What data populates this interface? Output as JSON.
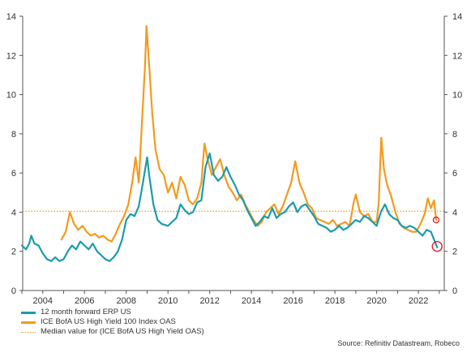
{
  "chart_data": {
    "type": "line",
    "xlim": [
      2003,
      2023.2
    ],
    "ylim": [
      0,
      14
    ],
    "x_ticks": [
      2004,
      2006,
      2008,
      2010,
      2012,
      2014,
      2016,
      2018,
      2020,
      2022
    ],
    "y_ticks": [
      0,
      2,
      4,
      6,
      8,
      10,
      12,
      14
    ],
    "y_axis_sides": [
      "left",
      "right"
    ],
    "grid": false,
    "legend_position": "bottom-left",
    "median_line": {
      "name": "Median value for (ICE BofA US High Yield OAS)",
      "value": 4.05,
      "color": "#f39a1e",
      "style": "dotted"
    },
    "series": [
      {
        "name": "12 month forward ERP US",
        "color": "#1a9bae",
        "points": [
          [
            2003.0,
            2.3
          ],
          [
            2003.2,
            2.1
          ],
          [
            2003.35,
            2.4
          ],
          [
            2003.45,
            2.8
          ],
          [
            2003.6,
            2.4
          ],
          [
            2003.8,
            2.3
          ],
          [
            2004.0,
            1.9
          ],
          [
            2004.2,
            1.6
          ],
          [
            2004.4,
            1.5
          ],
          [
            2004.6,
            1.7
          ],
          [
            2004.8,
            1.5
          ],
          [
            2005.0,
            1.6
          ],
          [
            2005.2,
            2.0
          ],
          [
            2005.4,
            2.3
          ],
          [
            2005.6,
            2.1
          ],
          [
            2005.8,
            2.5
          ],
          [
            2006.0,
            2.3
          ],
          [
            2006.2,
            2.1
          ],
          [
            2006.4,
            2.4
          ],
          [
            2006.6,
            2.0
          ],
          [
            2006.8,
            1.8
          ],
          [
            2007.0,
            1.6
          ],
          [
            2007.2,
            1.5
          ],
          [
            2007.4,
            1.7
          ],
          [
            2007.6,
            2.0
          ],
          [
            2007.8,
            2.6
          ],
          [
            2008.0,
            3.6
          ],
          [
            2008.2,
            3.9
          ],
          [
            2008.4,
            3.8
          ],
          [
            2008.6,
            4.3
          ],
          [
            2008.8,
            5.5
          ],
          [
            2009.0,
            6.8
          ],
          [
            2009.1,
            5.9
          ],
          [
            2009.3,
            4.4
          ],
          [
            2009.5,
            3.6
          ],
          [
            2009.7,
            3.4
          ],
          [
            2010.0,
            3.3
          ],
          [
            2010.2,
            3.5
          ],
          [
            2010.4,
            3.7
          ],
          [
            2010.6,
            4.4
          ],
          [
            2010.8,
            4.1
          ],
          [
            2011.0,
            3.9
          ],
          [
            2011.2,
            4.0
          ],
          [
            2011.4,
            4.5
          ],
          [
            2011.6,
            4.6
          ],
          [
            2011.8,
            6.3
          ],
          [
            2012.0,
            7.0
          ],
          [
            2012.2,
            5.9
          ],
          [
            2012.4,
            5.6
          ],
          [
            2012.6,
            5.8
          ],
          [
            2012.8,
            6.3
          ],
          [
            2013.0,
            5.8
          ],
          [
            2013.2,
            5.4
          ],
          [
            2013.4,
            4.9
          ],
          [
            2013.6,
            4.6
          ],
          [
            2013.8,
            4.1
          ],
          [
            2014.0,
            3.7
          ],
          [
            2014.2,
            3.3
          ],
          [
            2014.4,
            3.5
          ],
          [
            2014.6,
            3.8
          ],
          [
            2014.8,
            3.7
          ],
          [
            2015.0,
            4.2
          ],
          [
            2015.2,
            3.7
          ],
          [
            2015.4,
            3.9
          ],
          [
            2015.6,
            4.0
          ],
          [
            2015.8,
            4.3
          ],
          [
            2016.0,
            4.5
          ],
          [
            2016.2,
            4.0
          ],
          [
            2016.4,
            4.3
          ],
          [
            2016.6,
            4.4
          ],
          [
            2016.8,
            4.1
          ],
          [
            2017.0,
            3.8
          ],
          [
            2017.2,
            3.4
          ],
          [
            2017.4,
            3.3
          ],
          [
            2017.6,
            3.2
          ],
          [
            2017.8,
            3.0
          ],
          [
            2018.0,
            3.1
          ],
          [
            2018.2,
            3.3
          ],
          [
            2018.4,
            3.1
          ],
          [
            2018.6,
            3.2
          ],
          [
            2018.8,
            3.4
          ],
          [
            2019.0,
            3.6
          ],
          [
            2019.2,
            3.5
          ],
          [
            2019.4,
            3.8
          ],
          [
            2019.6,
            3.7
          ],
          [
            2019.8,
            3.5
          ],
          [
            2020.0,
            3.3
          ],
          [
            2020.2,
            4.0
          ],
          [
            2020.4,
            4.4
          ],
          [
            2020.6,
            3.9
          ],
          [
            2020.8,
            3.7
          ],
          [
            2021.0,
            3.6
          ],
          [
            2021.2,
            3.3
          ],
          [
            2021.4,
            3.2
          ],
          [
            2021.6,
            3.3
          ],
          [
            2021.8,
            3.2
          ],
          [
            2022.0,
            3.0
          ],
          [
            2022.2,
            2.8
          ],
          [
            2022.4,
            3.1
          ],
          [
            2022.6,
            3.0
          ],
          [
            2022.75,
            2.6
          ],
          [
            2022.9,
            2.2
          ]
        ]
      },
      {
        "name": "ICE BofA US High Yield 100 Index OAS",
        "color": "#f39a1e",
        "points": [
          [
            2004.9,
            2.6
          ],
          [
            2005.1,
            3.0
          ],
          [
            2005.3,
            4.0
          ],
          [
            2005.5,
            3.4
          ],
          [
            2005.7,
            3.1
          ],
          [
            2005.9,
            3.3
          ],
          [
            2006.1,
            3.0
          ],
          [
            2006.3,
            2.8
          ],
          [
            2006.5,
            2.9
          ],
          [
            2006.7,
            2.7
          ],
          [
            2006.9,
            2.8
          ],
          [
            2007.1,
            2.6
          ],
          [
            2007.3,
            2.5
          ],
          [
            2007.5,
            2.9
          ],
          [
            2007.7,
            3.4
          ],
          [
            2007.9,
            3.8
          ],
          [
            2008.1,
            4.4
          ],
          [
            2008.3,
            5.6
          ],
          [
            2008.45,
            6.8
          ],
          [
            2008.6,
            5.5
          ],
          [
            2008.75,
            8.5
          ],
          [
            2008.9,
            11.5
          ],
          [
            2008.97,
            13.5
          ],
          [
            2009.1,
            11.5
          ],
          [
            2009.25,
            9.0
          ],
          [
            2009.4,
            7.2
          ],
          [
            2009.6,
            6.2
          ],
          [
            2009.8,
            5.9
          ],
          [
            2010.0,
            5.0
          ],
          [
            2010.2,
            5.5
          ],
          [
            2010.4,
            4.7
          ],
          [
            2010.6,
            5.8
          ],
          [
            2010.8,
            5.4
          ],
          [
            2011.0,
            4.6
          ],
          [
            2011.2,
            4.4
          ],
          [
            2011.4,
            4.7
          ],
          [
            2011.6,
            5.5
          ],
          [
            2011.75,
            7.5
          ],
          [
            2011.9,
            6.7
          ],
          [
            2012.1,
            5.9
          ],
          [
            2012.3,
            6.3
          ],
          [
            2012.5,
            6.7
          ],
          [
            2012.7,
            5.9
          ],
          [
            2012.9,
            5.3
          ],
          [
            2013.1,
            5.0
          ],
          [
            2013.3,
            4.6
          ],
          [
            2013.5,
            4.9
          ],
          [
            2013.7,
            4.4
          ],
          [
            2013.9,
            4.0
          ],
          [
            2014.1,
            3.6
          ],
          [
            2014.3,
            3.3
          ],
          [
            2014.5,
            3.5
          ],
          [
            2014.7,
            4.0
          ],
          [
            2014.9,
            4.2
          ],
          [
            2015.1,
            4.4
          ],
          [
            2015.3,
            3.9
          ],
          [
            2015.5,
            4.3
          ],
          [
            2015.7,
            4.9
          ],
          [
            2015.9,
            5.5
          ],
          [
            2016.1,
            6.6
          ],
          [
            2016.3,
            5.5
          ],
          [
            2016.5,
            5.0
          ],
          [
            2016.7,
            4.4
          ],
          [
            2016.9,
            4.2
          ],
          [
            2017.1,
            3.7
          ],
          [
            2017.3,
            3.6
          ],
          [
            2017.5,
            3.5
          ],
          [
            2017.7,
            3.4
          ],
          [
            2017.9,
            3.6
          ],
          [
            2018.1,
            3.3
          ],
          [
            2018.3,
            3.4
          ],
          [
            2018.5,
            3.5
          ],
          [
            2018.7,
            3.3
          ],
          [
            2018.9,
            4.5
          ],
          [
            2019.0,
            4.9
          ],
          [
            2019.2,
            4.0
          ],
          [
            2019.4,
            3.8
          ],
          [
            2019.6,
            3.9
          ],
          [
            2019.8,
            3.5
          ],
          [
            2020.0,
            3.5
          ],
          [
            2020.1,
            4.5
          ],
          [
            2020.22,
            7.8
          ],
          [
            2020.35,
            6.2
          ],
          [
            2020.5,
            5.4
          ],
          [
            2020.7,
            4.8
          ],
          [
            2020.9,
            4.0
          ],
          [
            2021.1,
            3.4
          ],
          [
            2021.3,
            3.2
          ],
          [
            2021.5,
            3.1
          ],
          [
            2021.7,
            3.0
          ],
          [
            2021.9,
            3.0
          ],
          [
            2022.1,
            3.4
          ],
          [
            2022.3,
            3.9
          ],
          [
            2022.45,
            4.7
          ],
          [
            2022.6,
            4.2
          ],
          [
            2022.75,
            4.6
          ],
          [
            2022.85,
            3.6
          ]
        ]
      }
    ],
    "annotations": [
      {
        "type": "circle",
        "x": 2022.9,
        "y": 2.25,
        "radius_px": 6,
        "color": "#e0202e"
      },
      {
        "type": "circle",
        "x": 2022.85,
        "y": 3.6,
        "radius_px": 3.5,
        "color": "#e0202e"
      }
    ]
  },
  "legend": {
    "items": [
      {
        "label": "12 month forward ERP US",
        "style": "solid-teal"
      },
      {
        "label": "ICE BofA US High Yield 100 Index OAS",
        "style": "solid-orange"
      },
      {
        "label": "Median value for (ICE BofA US High Yield OAS)",
        "style": "dotted-orange"
      }
    ]
  },
  "source": "Source: Refinitiv Datastream, Robeco"
}
